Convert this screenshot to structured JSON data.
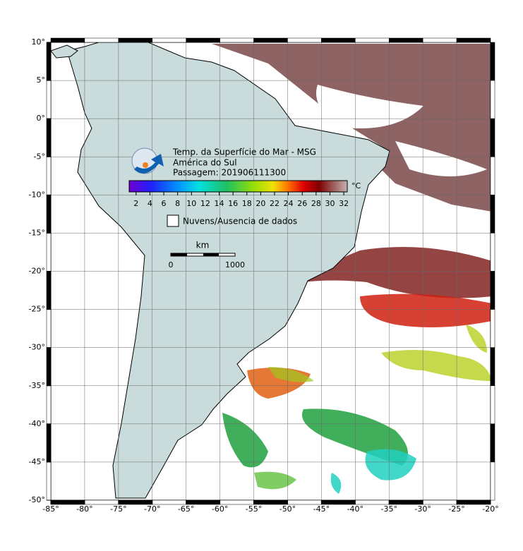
{
  "map": {
    "title": [
      "Temp. da Superfície do Mar - MSG",
      "América do Sul",
      "Passagem: 201906111300"
    ],
    "colorbar": {
      "ticks": [
        2,
        4,
        6,
        8,
        10,
        12,
        14,
        16,
        18,
        20,
        22,
        24,
        26,
        28,
        30,
        32
      ],
      "lim": [
        1,
        32.5
      ],
      "unit": "°C"
    },
    "legend": "Nuvens/Ausencia de dados",
    "scale_bar": {
      "unit": "km",
      "labels": [
        "0",
        "1000"
      ]
    },
    "xlim": [
      -85,
      -20
    ],
    "ylim": [
      -50,
      10
    ],
    "xticks": [
      {
        "value": -85,
        "label": "-85°"
      },
      {
        "value": -80,
        "label": "-80°"
      },
      {
        "value": -75,
        "label": "-75°"
      },
      {
        "value": -70,
        "label": "-70°"
      },
      {
        "value": -65,
        "label": "-65°"
      },
      {
        "value": -60,
        "label": "-60°"
      },
      {
        "value": -55,
        "label": "-55°"
      },
      {
        "value": -50,
        "label": "-50°"
      },
      {
        "value": -45,
        "label": "-45°"
      },
      {
        "value": -40,
        "label": "-40°"
      },
      {
        "value": -35,
        "label": "-35°"
      },
      {
        "value": -30,
        "label": "-30°"
      },
      {
        "value": -25,
        "label": "-25°"
      },
      {
        "value": -20,
        "label": "-20°"
      }
    ],
    "yticks": [
      {
        "value": 10,
        "label": "10°"
      },
      {
        "value": 5,
        "label": "5°"
      },
      {
        "value": 0,
        "label": "0°"
      },
      {
        "value": -5,
        "label": "-5°"
      },
      {
        "value": -10,
        "label": "-10°"
      },
      {
        "value": -15,
        "label": "-15°"
      },
      {
        "value": -20,
        "label": "-20°"
      },
      {
        "value": -25,
        "label": "-25°"
      },
      {
        "value": -30,
        "label": "-30°"
      },
      {
        "value": -35,
        "label": "-35°"
      },
      {
        "value": -40,
        "label": "-40°"
      },
      {
        "value": -45,
        "label": "-45°"
      },
      {
        "value": -50,
        "label": "-50°"
      }
    ],
    "grid": true
  }
}
